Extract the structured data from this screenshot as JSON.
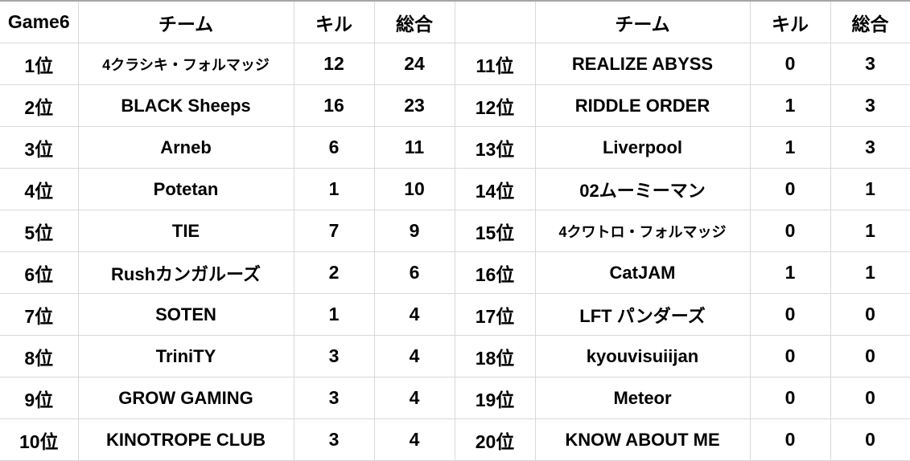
{
  "header": {
    "game_label": "Game6",
    "team_label": "チーム",
    "kill_label": "キル",
    "total_label": "総合",
    "blank_label": "",
    "team_label_2": "チーム",
    "kill_label_2": "キル",
    "total_label_2": "総合"
  },
  "rows": [
    {
      "left": {
        "rank": "1位",
        "team": "4クラシキ・フォルマッジ",
        "kills": "12",
        "total": "24"
      },
      "right": {
        "rank": "11位",
        "team": "REALIZE ABYSS",
        "kills": "0",
        "total": "3"
      }
    },
    {
      "left": {
        "rank": "2位",
        "team": "BLACK Sheeps",
        "kills": "16",
        "total": "23"
      },
      "right": {
        "rank": "12位",
        "team": "RIDDLE ORDER",
        "kills": "1",
        "total": "3"
      }
    },
    {
      "left": {
        "rank": "3位",
        "team": "Arneb",
        "kills": "6",
        "total": "11"
      },
      "right": {
        "rank": "13位",
        "team": "Liverpool",
        "kills": "1",
        "total": "3"
      }
    },
    {
      "left": {
        "rank": "4位",
        "team": "Potetan",
        "kills": "1",
        "total": "10"
      },
      "right": {
        "rank": "14位",
        "team": "02ムーミーマン",
        "kills": "0",
        "total": "1"
      }
    },
    {
      "left": {
        "rank": "5位",
        "team": "TIE",
        "kills": "7",
        "total": "9"
      },
      "right": {
        "rank": "15位",
        "team": "4クワトロ・フォルマッジ",
        "kills": "0",
        "total": "1"
      }
    },
    {
      "left": {
        "rank": "6位",
        "team": "Rushカンガルーズ",
        "kills": "2",
        "total": "6"
      },
      "right": {
        "rank": "16位",
        "team": "CatJAM",
        "kills": "1",
        "total": "1"
      }
    },
    {
      "left": {
        "rank": "7位",
        "team": "SOTEN",
        "kills": "1",
        "total": "4"
      },
      "right": {
        "rank": "17位",
        "team": "LFT パンダーズ",
        "kills": "0",
        "total": "0"
      }
    },
    {
      "left": {
        "rank": "8位",
        "team": "TriniTY",
        "kills": "3",
        "total": "4"
      },
      "right": {
        "rank": "18位",
        "team": "kyouvisuiijan",
        "kills": "0",
        "total": "0"
      }
    },
    {
      "left": {
        "rank": "9位",
        "team": "GROW GAMING",
        "kills": "3",
        "total": "4"
      },
      "right": {
        "rank": "19位",
        "team": "Meteor",
        "kills": "0",
        "total": "0"
      }
    },
    {
      "left": {
        "rank": "10位",
        "team": "KINOTROPE CLUB",
        "kills": "3",
        "total": "4"
      },
      "right": {
        "rank": "20位",
        "team": "KNOW ABOUT ME",
        "kills": "0",
        "total": "0"
      }
    }
  ]
}
